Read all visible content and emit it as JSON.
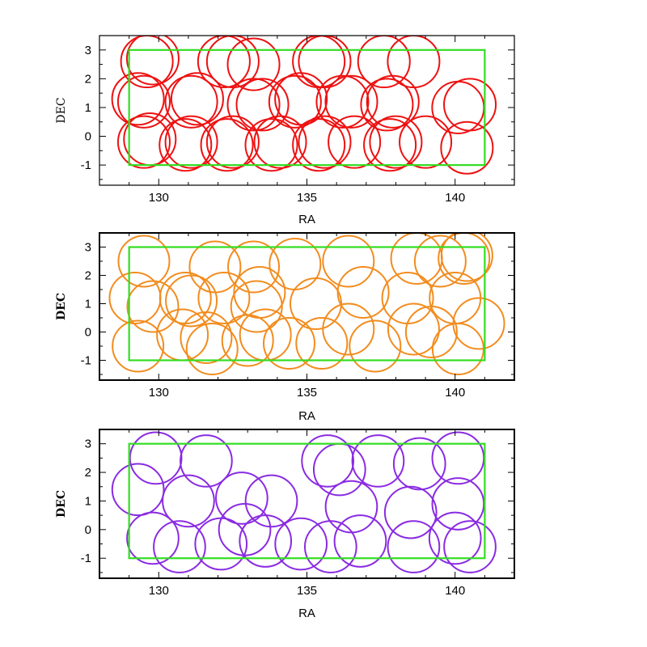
{
  "chart_data": [
    {
      "type": "scatter",
      "xlabel": "RA",
      "ylabel": "DEC",
      "xlim": [
        128,
        142
      ],
      "ylim": [
        -1.7,
        3.5
      ],
      "x_ticks": [
        "130",
        "135",
        "140"
      ],
      "y_ticks": [
        "-1",
        "0",
        "1",
        "2",
        "3"
      ],
      "boundary": {
        "ra": [
          129,
          141
        ],
        "dec": [
          -1,
          3
        ],
        "color": "#33dd22"
      },
      "circle_color": "#ee1111",
      "circle_radius_dec": 0.9,
      "circles": [
        [
          129.6,
          2.6
        ],
        [
          129.8,
          2.7
        ],
        [
          132.2,
          2.6
        ],
        [
          132.5,
          2.6
        ],
        [
          133.2,
          2.5
        ],
        [
          135.4,
          2.6
        ],
        [
          135.6,
          2.6
        ],
        [
          137.6,
          2.6
        ],
        [
          138.6,
          2.6
        ],
        [
          129.3,
          1.3
        ],
        [
          129.5,
          1.2
        ],
        [
          131.1,
          1.2
        ],
        [
          131.3,
          1.3
        ],
        [
          133.2,
          1.1
        ],
        [
          133.5,
          1.1
        ],
        [
          134.6,
          1.2
        ],
        [
          134.8,
          1.3
        ],
        [
          136.2,
          1.2
        ],
        [
          136.5,
          1.2
        ],
        [
          137.7,
          1.1
        ],
        [
          137.9,
          1.2
        ],
        [
          140.1,
          1.0
        ],
        [
          140.5,
          1.1
        ],
        [
          129.5,
          -0.2
        ],
        [
          129.7,
          -0.1
        ],
        [
          130.9,
          -0.3
        ],
        [
          131.1,
          -0.2
        ],
        [
          132.3,
          -0.3
        ],
        [
          132.5,
          -0.2
        ],
        [
          133.8,
          -0.3
        ],
        [
          134.1,
          -0.2
        ],
        [
          135.4,
          -0.3
        ],
        [
          135.6,
          -0.2
        ],
        [
          136.6,
          -0.2
        ],
        [
          137.8,
          -0.3
        ],
        [
          138.0,
          -0.2
        ],
        [
          139.0,
          -0.2
        ],
        [
          140.4,
          -0.4
        ]
      ]
    },
    {
      "type": "scatter",
      "xlabel": "RA",
      "ylabel": "DEC",
      "xlim": [
        128,
        142
      ],
      "ylim": [
        -1.7,
        3.5
      ],
      "x_ticks": [
        "130",
        "135",
        "140"
      ],
      "y_ticks": [
        "-1",
        "0",
        "1",
        "2",
        "3"
      ],
      "boundary": {
        "ra": [
          129,
          141
        ],
        "dec": [
          -1,
          3
        ],
        "color": "#33dd22"
      },
      "circle_color": "#f28c1e",
      "circle_radius_dec": 0.9,
      "circles": [
        [
          129.5,
          2.5
        ],
        [
          131.9,
          2.3
        ],
        [
          133.2,
          2.3
        ],
        [
          134.6,
          2.4
        ],
        [
          136.4,
          2.5
        ],
        [
          138.7,
          2.6
        ],
        [
          139.5,
          2.5
        ],
        [
          140.3,
          2.6
        ],
        [
          140.4,
          2.7
        ],
        [
          129.2,
          1.2
        ],
        [
          129.8,
          0.9
        ],
        [
          130.9,
          1.2
        ],
        [
          131.1,
          1.1
        ],
        [
          132.2,
          1.2
        ],
        [
          133.3,
          0.9
        ],
        [
          133.4,
          1.4
        ],
        [
          135.3,
          1.0
        ],
        [
          136.9,
          1.4
        ],
        [
          138.4,
          1.2
        ],
        [
          140.0,
          1.2
        ],
        [
          129.3,
          -0.5
        ],
        [
          130.8,
          -0.1
        ],
        [
          131.6,
          -0.2
        ],
        [
          131.8,
          -0.6
        ],
        [
          133.0,
          -0.3
        ],
        [
          133.6,
          -0.1
        ],
        [
          134.4,
          -0.4
        ],
        [
          135.5,
          -0.4
        ],
        [
          136.4,
          0.1
        ],
        [
          137.3,
          -0.5
        ],
        [
          138.6,
          0.1
        ],
        [
          139.2,
          0.0
        ],
        [
          140.1,
          -0.6
        ],
        [
          140.8,
          0.3
        ]
      ]
    },
    {
      "type": "scatter",
      "xlabel": "RA",
      "ylabel": "DEC",
      "xlim": [
        128,
        142
      ],
      "ylim": [
        -1.7,
        3.5
      ],
      "x_ticks": [
        "130",
        "135",
        "140"
      ],
      "y_ticks": [
        "-1",
        "0",
        "1",
        "2",
        "3"
      ],
      "boundary": {
        "ra": [
          129,
          141
        ],
        "dec": [
          -1,
          3
        ],
        "color": "#33dd22"
      },
      "circle_color": "#8a2be2",
      "circle_radius_dec": 0.9,
      "circles": [
        [
          129.9,
          2.5
        ],
        [
          131.6,
          2.4
        ],
        [
          135.7,
          2.4
        ],
        [
          136.1,
          2.1
        ],
        [
          137.4,
          2.4
        ],
        [
          138.8,
          2.3
        ],
        [
          140.1,
          2.5
        ],
        [
          129.3,
          1.4
        ],
        [
          131.0,
          1.0
        ],
        [
          132.8,
          1.1
        ],
        [
          133.8,
          1.0
        ],
        [
          136.5,
          0.8
        ],
        [
          138.5,
          0.6
        ],
        [
          140.1,
          0.9
        ],
        [
          129.8,
          -0.3
        ],
        [
          130.7,
          -0.6
        ],
        [
          132.1,
          -0.5
        ],
        [
          132.9,
          0.0
        ],
        [
          133.6,
          -0.4
        ],
        [
          134.8,
          -0.5
        ],
        [
          135.8,
          -0.6
        ],
        [
          136.8,
          -0.4
        ],
        [
          138.6,
          -0.6
        ],
        [
          140.0,
          -0.3
        ],
        [
          140.5,
          -0.6
        ]
      ]
    }
  ]
}
